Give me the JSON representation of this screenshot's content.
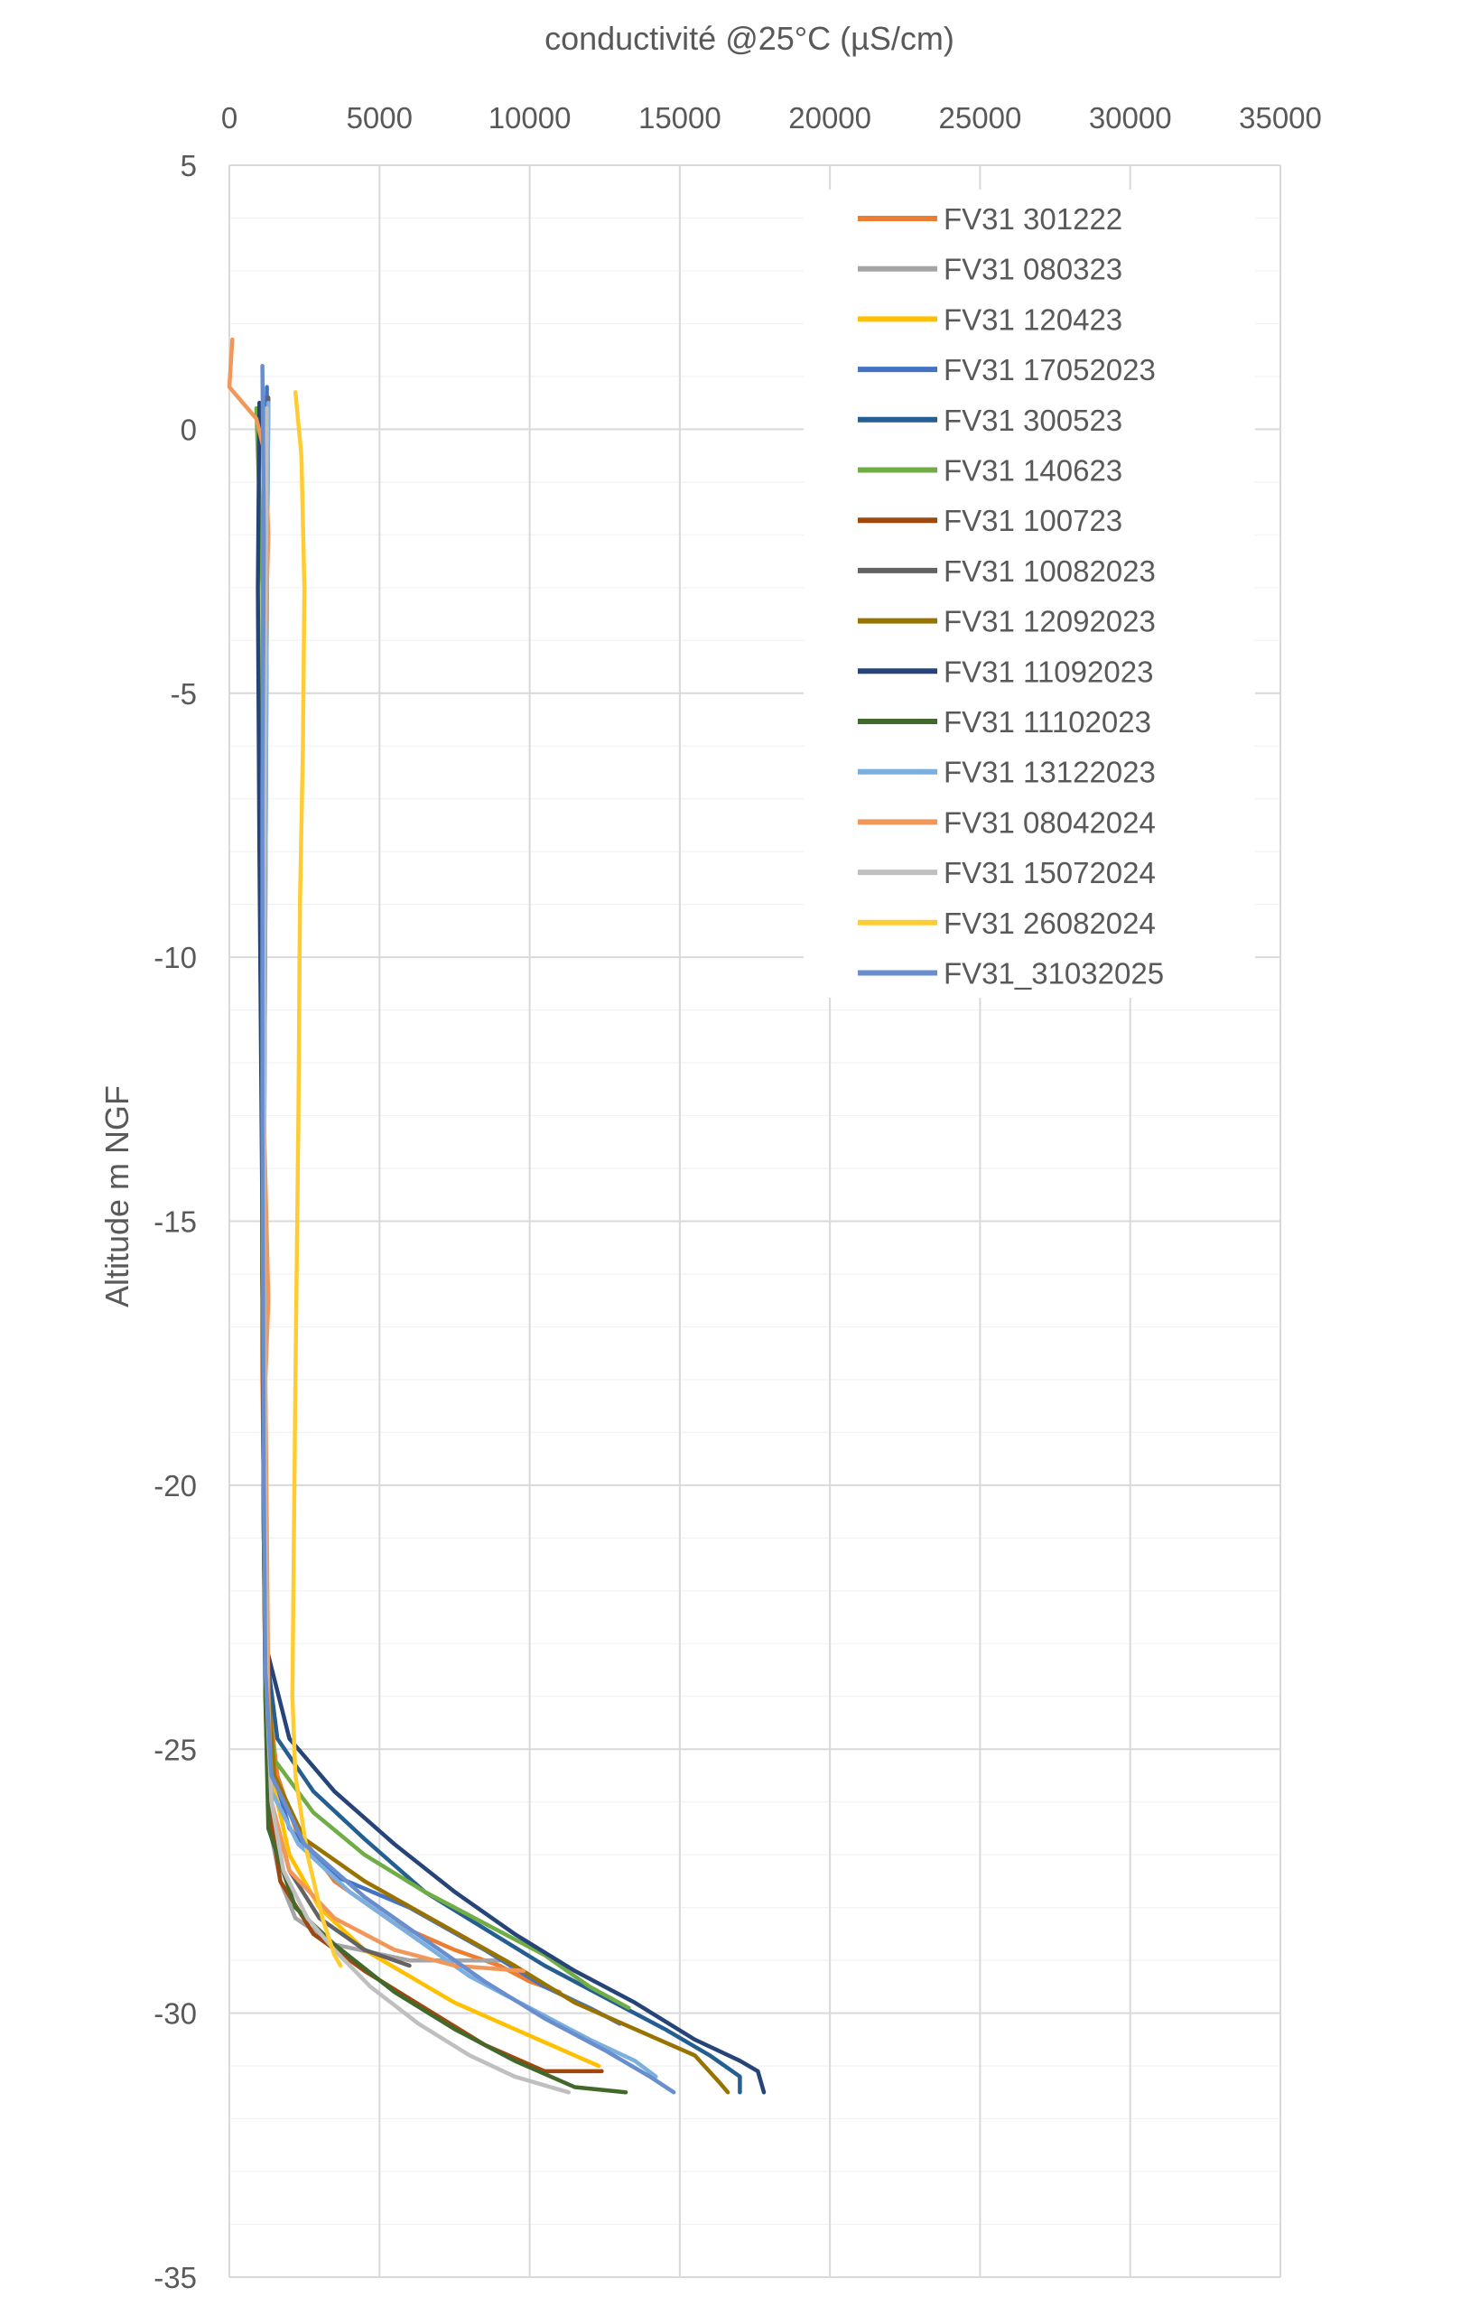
{
  "chart_data": {
    "type": "line",
    "xlabel": "conductivité @25°C (µS/cm)",
    "ylabel": "Altitude m NGF",
    "xlim": [
      0,
      35000
    ],
    "ylim": [
      -35,
      5
    ],
    "x_ticks": [
      "0",
      "5000",
      "10000",
      "15000",
      "20000",
      "25000",
      "30000",
      "35000"
    ],
    "y_ticks": [
      "5",
      "0",
      "-5",
      "-10",
      "-15",
      "-20",
      "-25",
      "-30",
      "-35"
    ],
    "x_axis_position": "top",
    "grid": true,
    "legend_position": "top-right",
    "series": [
      {
        "name": "FV31 301222",
        "color": "#ED7D31",
        "points": [
          [
            1300,
            0.5
          ],
          [
            1200,
            -2
          ],
          [
            1150,
            -6
          ],
          [
            1100,
            -12
          ],
          [
            1100,
            -18
          ],
          [
            1200,
            -22.5
          ],
          [
            1300,
            -24
          ],
          [
            1600,
            -25.5
          ],
          [
            2200,
            -26.5
          ],
          [
            3500,
            -27.5
          ],
          [
            5500,
            -28.3
          ],
          [
            7500,
            -28.8
          ],
          [
            9000,
            -29.1
          ],
          [
            10000,
            -29.4
          ],
          [
            11000,
            -29.6
          ]
        ]
      },
      {
        "name": "FV31 080323",
        "color": "#A5A5A5",
        "points": [
          [
            1200,
            0.6
          ],
          [
            1150,
            -3
          ],
          [
            1100,
            -8
          ],
          [
            1100,
            -14
          ],
          [
            1150,
            -20
          ],
          [
            1200,
            -23
          ],
          [
            1250,
            -25
          ],
          [
            1350,
            -26.5
          ],
          [
            1700,
            -27.5
          ],
          [
            2200,
            -28.2
          ],
          [
            3500,
            -28.7
          ],
          [
            6000,
            -29
          ],
          [
            9000,
            -29
          ]
        ]
      },
      {
        "name": "FV31 120423",
        "color": "#FFC000",
        "points": [
          [
            1250,
            0.4
          ],
          [
            1200,
            -4
          ],
          [
            1150,
            -10
          ],
          [
            1150,
            -16
          ],
          [
            1200,
            -21
          ],
          [
            1250,
            -23.5
          ],
          [
            1400,
            -25.5
          ],
          [
            2000,
            -27
          ],
          [
            3000,
            -28
          ],
          [
            4500,
            -28.8
          ],
          [
            6000,
            -29.3
          ],
          [
            7500,
            -29.8
          ],
          [
            9500,
            -30.3
          ],
          [
            11500,
            -30.8
          ],
          [
            12300,
            -31
          ]
        ]
      },
      {
        "name": "FV31 17052023",
        "color": "#4472C4",
        "points": [
          [
            1250,
            0.8
          ],
          [
            1200,
            -3
          ],
          [
            1150,
            -8
          ],
          [
            1150,
            -15
          ],
          [
            1200,
            -21
          ],
          [
            1250,
            -23.5
          ],
          [
            1400,
            -25.3
          ],
          [
            2000,
            -26.5
          ],
          [
            3500,
            -27.4
          ],
          [
            6000,
            -28
          ],
          [
            8500,
            -28.8
          ],
          [
            10500,
            -29.5
          ],
          [
            12000,
            -29.9
          ],
          [
            13000,
            -30.2
          ]
        ]
      },
      {
        "name": "FV31 300523",
        "color": "#255E91",
        "points": [
          [
            1200,
            0.3
          ],
          [
            1150,
            -4
          ],
          [
            1100,
            -10
          ],
          [
            1100,
            -16
          ],
          [
            1150,
            -21
          ],
          [
            1200,
            -23
          ],
          [
            1600,
            -24.8
          ],
          [
            2800,
            -25.8
          ],
          [
            4500,
            -26.7
          ],
          [
            6500,
            -27.7
          ],
          [
            8500,
            -28.4
          ],
          [
            10500,
            -29.1
          ],
          [
            12500,
            -29.7
          ],
          [
            14500,
            -30.3
          ],
          [
            16000,
            -30.8
          ],
          [
            17000,
            -31.2
          ],
          [
            17000,
            -31.5
          ]
        ]
      },
      {
        "name": "FV31 140623",
        "color": "#70AD47",
        "points": [
          [
            900,
            0.4
          ],
          [
            1100,
            -3
          ],
          [
            1100,
            -9
          ],
          [
            1100,
            -15
          ],
          [
            1150,
            -21
          ],
          [
            1200,
            -23.5
          ],
          [
            1500,
            -25.2
          ],
          [
            2800,
            -26.2
          ],
          [
            4500,
            -27
          ],
          [
            6500,
            -27.7
          ],
          [
            8500,
            -28.3
          ],
          [
            10500,
            -28.9
          ],
          [
            12000,
            -29.5
          ],
          [
            13300,
            -29.9
          ]
        ]
      },
      {
        "name": "FV31 100723",
        "color": "#9E480E",
        "points": [
          [
            1200,
            0.3
          ],
          [
            1150,
            -4
          ],
          [
            1100,
            -10
          ],
          [
            1100,
            -16
          ],
          [
            1150,
            -21
          ],
          [
            1200,
            -24
          ],
          [
            1300,
            -26
          ],
          [
            1700,
            -27.5
          ],
          [
            2800,
            -28.5
          ],
          [
            4500,
            -29.2
          ],
          [
            6500,
            -29.9
          ],
          [
            8500,
            -30.6
          ],
          [
            10500,
            -31.1
          ],
          [
            12400,
            -31.1
          ]
        ]
      },
      {
        "name": "FV31 10082023",
        "color": "#636363",
        "points": [
          [
            1300,
            0.6
          ],
          [
            1250,
            -3
          ],
          [
            1200,
            -9
          ],
          [
            1150,
            -15
          ],
          [
            1200,
            -21
          ],
          [
            1250,
            -24
          ],
          [
            1400,
            -26
          ],
          [
            2000,
            -27.3
          ],
          [
            3000,
            -28.2
          ],
          [
            4500,
            -28.8
          ],
          [
            6000,
            -29.1
          ]
        ]
      },
      {
        "name": "FV31 12092023",
        "color": "#997300",
        "points": [
          [
            1250,
            0.4
          ],
          [
            1200,
            -4
          ],
          [
            1150,
            -10
          ],
          [
            1150,
            -16
          ],
          [
            1200,
            -21
          ],
          [
            1250,
            -23.5
          ],
          [
            1500,
            -25.5
          ],
          [
            2500,
            -26.7
          ],
          [
            4500,
            -27.5
          ],
          [
            7000,
            -28.3
          ],
          [
            9500,
            -29.1
          ],
          [
            11500,
            -29.8
          ],
          [
            13500,
            -30.3
          ],
          [
            15500,
            -30.8
          ],
          [
            16300,
            -31.3
          ],
          [
            16600,
            -31.5
          ]
        ]
      },
      {
        "name": "FV31 11092023",
        "color": "#264478",
        "points": [
          [
            1000,
            0.5
          ],
          [
            950,
            -3
          ],
          [
            1000,
            -8
          ],
          [
            1100,
            -15
          ],
          [
            1150,
            -21
          ],
          [
            1200,
            -23
          ],
          [
            2000,
            -24.8
          ],
          [
            3500,
            -25.8
          ],
          [
            5500,
            -26.8
          ],
          [
            7500,
            -27.7
          ],
          [
            9500,
            -28.5
          ],
          [
            11500,
            -29.2
          ],
          [
            13500,
            -29.8
          ],
          [
            15500,
            -30.5
          ],
          [
            17000,
            -30.9
          ],
          [
            17600,
            -31.1
          ],
          [
            17800,
            -31.5
          ]
        ]
      },
      {
        "name": "FV31 11102023",
        "color": "#43682B",
        "points": [
          [
            1200,
            0.3
          ],
          [
            1150,
            -4
          ],
          [
            1100,
            -10
          ],
          [
            1100,
            -16
          ],
          [
            1150,
            -21
          ],
          [
            1200,
            -24
          ],
          [
            1300,
            -26.5
          ],
          [
            2200,
            -28
          ],
          [
            3500,
            -28.7
          ],
          [
            5500,
            -29.6
          ],
          [
            7500,
            -30.3
          ],
          [
            9500,
            -30.9
          ],
          [
            11500,
            -31.4
          ],
          [
            13200,
            -31.5
          ]
        ]
      },
      {
        "name": "FV31 13122023",
        "color": "#7CAFDD",
        "points": [
          [
            1300,
            0.5
          ],
          [
            1250,
            -3
          ],
          [
            1200,
            -9
          ],
          [
            1150,
            -15
          ],
          [
            1200,
            -21
          ],
          [
            1250,
            -24
          ],
          [
            1400,
            -25.8
          ],
          [
            2300,
            -26.8
          ],
          [
            4000,
            -27.7
          ],
          [
            6000,
            -28.5
          ],
          [
            8000,
            -29.3
          ],
          [
            10000,
            -29.9
          ],
          [
            12000,
            -30.5
          ],
          [
            13500,
            -30.9
          ],
          [
            14200,
            -31.2
          ]
        ]
      },
      {
        "name": "FV31 08042024",
        "color": "#F1975A",
        "points": [
          [
            100,
            1.7
          ],
          [
            0,
            0.8
          ],
          [
            900,
            0.2
          ],
          [
            1200,
            -0.5
          ],
          [
            1300,
            -2
          ],
          [
            1200,
            -4
          ],
          [
            1150,
            -9
          ],
          [
            1150,
            -13
          ],
          [
            1300,
            -16.5
          ],
          [
            1200,
            -18
          ],
          [
            1250,
            -21
          ],
          [
            1300,
            -24
          ],
          [
            1400,
            -26
          ],
          [
            2000,
            -27.3
          ],
          [
            3500,
            -28.2
          ],
          [
            5500,
            -28.8
          ],
          [
            7500,
            -29.1
          ],
          [
            9800,
            -29.2
          ]
        ]
      },
      {
        "name": "FV31 15072024",
        "color": "#BFBFBF",
        "points": [
          [
            1250,
            0.4
          ],
          [
            1200,
            -4
          ],
          [
            1150,
            -10
          ],
          [
            1150,
            -16
          ],
          [
            1200,
            -21
          ],
          [
            1250,
            -24
          ],
          [
            1400,
            -26
          ],
          [
            1800,
            -27.3
          ],
          [
            2600,
            -28.2
          ],
          [
            3500,
            -28.8
          ],
          [
            4700,
            -29.5
          ],
          [
            6300,
            -30.2
          ],
          [
            8000,
            -30.8
          ],
          [
            9500,
            -31.2
          ],
          [
            11300,
            -31.5
          ]
        ]
      },
      {
        "name": "FV31 26082024",
        "color": "#FFCD33",
        "points": [
          [
            2200,
            0.7
          ],
          [
            2400,
            -0.5
          ],
          [
            2500,
            -3
          ],
          [
            2450,
            -6
          ],
          [
            2350,
            -9
          ],
          [
            2300,
            -13
          ],
          [
            2200,
            -18
          ],
          [
            2150,
            -21
          ],
          [
            2100,
            -24
          ],
          [
            2200,
            -25.5
          ],
          [
            2600,
            -27
          ],
          [
            3100,
            -28.2
          ],
          [
            3500,
            -28.9
          ],
          [
            3700,
            -29.1
          ]
        ]
      },
      {
        "name": "FV31_31032025",
        "color": "#698ED0",
        "points": [
          [
            1100,
            1.2
          ],
          [
            1150,
            -2
          ],
          [
            1100,
            -7
          ],
          [
            1100,
            -13
          ],
          [
            1150,
            -20
          ],
          [
            1200,
            -23.5
          ],
          [
            1400,
            -25.5
          ],
          [
            2500,
            -26.8
          ],
          [
            4500,
            -27.8
          ],
          [
            6500,
            -28.6
          ],
          [
            8500,
            -29.4
          ],
          [
            10500,
            -30.1
          ],
          [
            12500,
            -30.7
          ],
          [
            14000,
            -31.2
          ],
          [
            14800,
            -31.5
          ]
        ]
      }
    ]
  }
}
